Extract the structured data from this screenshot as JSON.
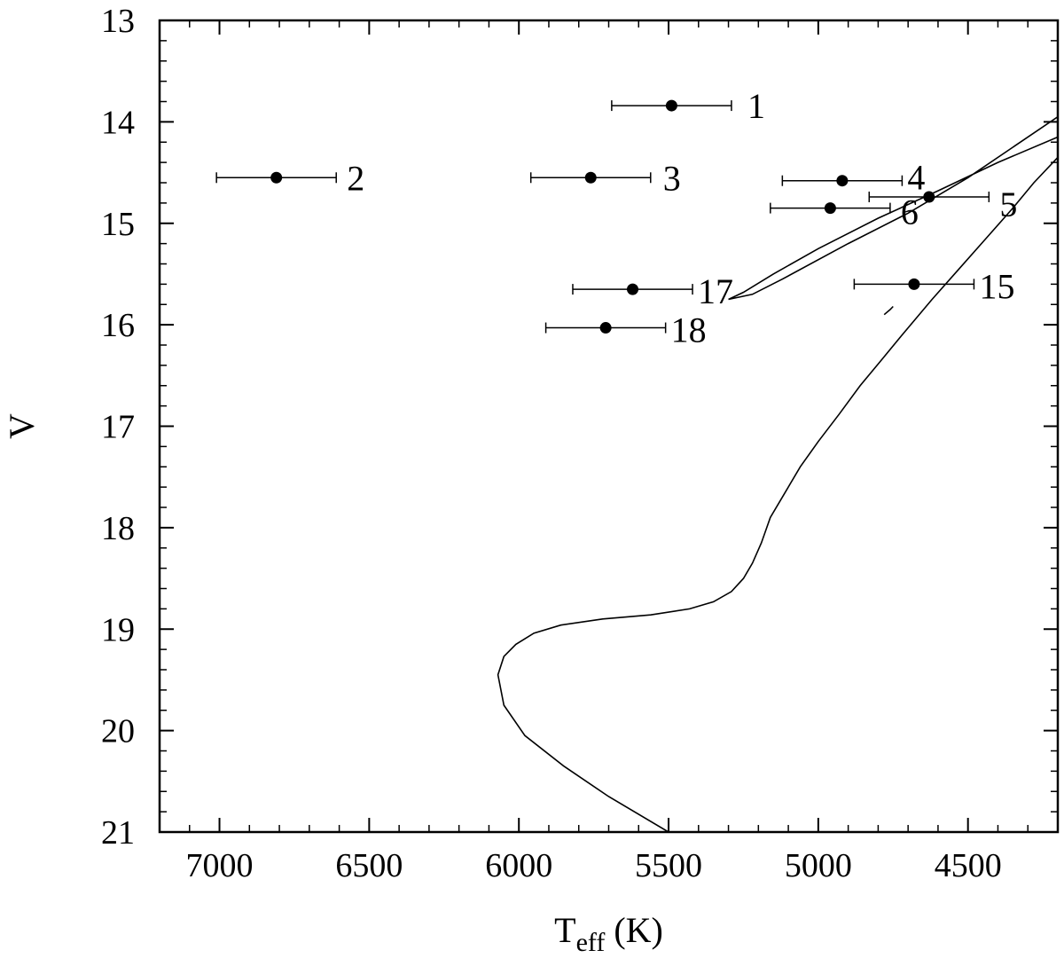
{
  "chart_data": {
    "type": "scatter",
    "title": "",
    "xlabel_main": "T",
    "xlabel_sub": "eff",
    "xlabel_unit": " (K)",
    "ylabel": "V",
    "xlim": [
      7200,
      4200
    ],
    "ylim": [
      13,
      21
    ],
    "y_inverted": true,
    "grid": false,
    "x_ticks": [
      7000,
      6500,
      6000,
      5500,
      5000,
      4500
    ],
    "y_ticks": [
      13,
      14,
      15,
      16,
      17,
      18,
      19,
      20,
      21
    ],
    "x_tick_labels": [
      "7000",
      "6500",
      "6000",
      "5500",
      "5000",
      "4500"
    ],
    "y_tick_labels": [
      "13",
      "14",
      "15",
      "16",
      "17",
      "18",
      "19",
      "20",
      "21"
    ],
    "series": [
      {
        "points": [
          {
            "label": "1",
            "teff": 5490,
            "v": 13.84,
            "err": 200
          },
          {
            "label": "2",
            "teff": 6810,
            "v": 14.55,
            "err": 200
          },
          {
            "label": "3",
            "teff": 5760,
            "v": 14.55,
            "err": 200
          },
          {
            "label": "4",
            "teff": 4920,
            "v": 14.58,
            "err": 200
          },
          {
            "label": "5",
            "teff": 4630,
            "v": 14.74,
            "err": 200
          },
          {
            "label": "6",
            "teff": 4960,
            "v": 14.85,
            "err": 200
          },
          {
            "label": "15",
            "teff": 4680,
            "v": 15.6,
            "err": 200
          },
          {
            "label": "17",
            "teff": 5620,
            "v": 15.65,
            "err": 200
          },
          {
            "label": "18",
            "teff": 5710,
            "v": 16.03,
            "err": 200
          }
        ]
      }
    ],
    "isochrone": [
      [
        5500,
        21.0
      ],
      [
        5700,
        20.65
      ],
      [
        5850,
        20.35
      ],
      [
        5980,
        20.05
      ],
      [
        6050,
        19.75
      ],
      [
        6070,
        19.45
      ],
      [
        6050,
        19.27
      ],
      [
        6010,
        19.15
      ],
      [
        5950,
        19.04
      ],
      [
        5860,
        18.96
      ],
      [
        5720,
        18.9
      ],
      [
        5560,
        18.86
      ],
      [
        5430,
        18.8
      ],
      [
        5350,
        18.73
      ],
      [
        5290,
        18.63
      ],
      [
        5250,
        18.5
      ],
      [
        5220,
        18.35
      ],
      [
        5190,
        18.15
      ],
      [
        5160,
        17.9
      ],
      [
        5110,
        17.65
      ],
      [
        5060,
        17.4
      ],
      [
        5000,
        17.15
      ],
      [
        4930,
        16.88
      ],
      [
        4860,
        16.6
      ],
      [
        4790,
        16.35
      ],
      [
        4720,
        16.1
      ],
      [
        4620,
        15.75
      ],
      [
        4530,
        15.45
      ],
      [
        4440,
        15.15
      ],
      [
        4350,
        14.85
      ],
      [
        4280,
        14.6
      ],
      [
        4200,
        14.35
      ]
    ],
    "rgb_branch": [
      [
        4200,
        14.15
      ],
      [
        4400,
        14.4
      ],
      [
        4600,
        14.68
      ],
      [
        4800,
        14.95
      ],
      [
        5000,
        15.25
      ],
      [
        5150,
        15.5
      ],
      [
        5250,
        15.68
      ],
      [
        5300,
        15.75
      ],
      [
        5220,
        15.7
      ],
      [
        5120,
        15.55
      ],
      [
        4900,
        15.2
      ],
      [
        4700,
        14.9
      ],
      [
        4500,
        14.55
      ],
      [
        4350,
        14.25
      ],
      [
        4200,
        13.95
      ]
    ],
    "blob": [
      [
        4780,
        15.9
      ],
      [
        4760,
        15.85
      ],
      [
        4750,
        15.82
      ]
    ]
  }
}
